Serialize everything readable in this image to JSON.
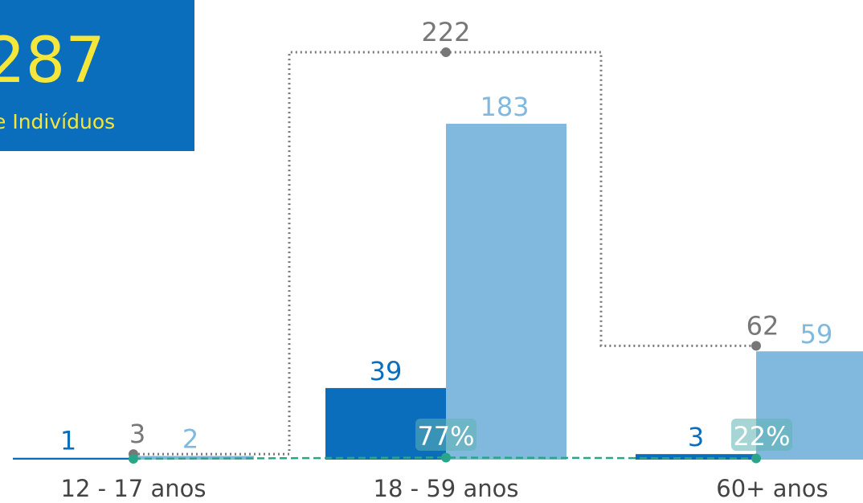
{
  "panel": {
    "value": "287",
    "label": "e Indivíduos"
  },
  "chart_data": {
    "type": "bar",
    "categories": [
      "12 - 17 anos",
      "18 - 59 anos",
      "60+ anos"
    ],
    "series": [
      {
        "color": "#0a6ebd",
        "values": [
          1,
          39,
          3
        ]
      },
      {
        "color": "#80b9dd",
        "values": [
          2,
          183,
          59
        ]
      }
    ],
    "totals": {
      "color": "#777777",
      "values": [
        3,
        222,
        62
      ]
    },
    "percent": {
      "color": "#2aa58a",
      "values": [
        1,
        77,
        22
      ],
      "value_labels": [
        null,
        "77%",
        "22%"
      ]
    }
  }
}
